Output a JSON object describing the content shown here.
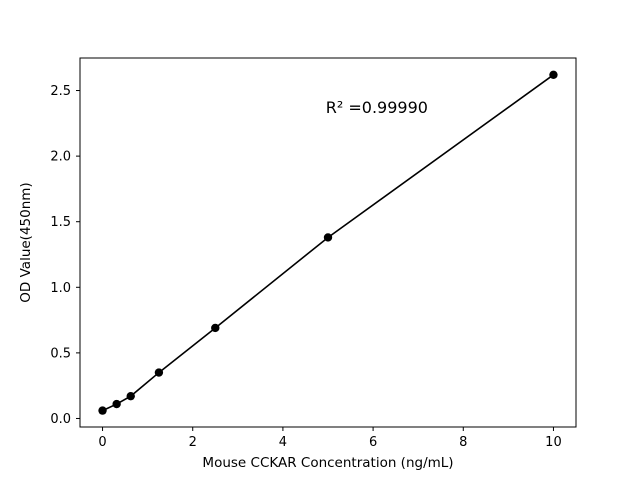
{
  "figure": {
    "background": "#ffffff"
  },
  "chart_data": {
    "type": "scatter",
    "title": "",
    "xlabel": "Mouse CCKAR Concentration (ng/mL)",
    "ylabel": "OD Value(450nm)",
    "x": [
      0,
      0.3125,
      0.625,
      1.25,
      2.5,
      5,
      10
    ],
    "y": [
      0.06,
      0.11,
      0.17,
      0.35,
      0.69,
      1.38,
      2.62
    ],
    "xlim": [
      -0.5,
      10.5
    ],
    "ylim": [
      -0.065,
      2.748
    ],
    "xticks": [
      0,
      2,
      4,
      6,
      8,
      10
    ],
    "xtick_labels": [
      "0",
      "2",
      "4",
      "6",
      "8",
      "10"
    ],
    "yticks": [
      0.0,
      0.5,
      1.0,
      1.5,
      2.0,
      2.5
    ],
    "ytick_labels": [
      "0.0",
      "0.5",
      "1.0",
      "1.5",
      "2.0",
      "2.5"
    ],
    "annotation": {
      "text": "R² =0.99990",
      "x": 4.95,
      "y": 2.33
    },
    "legend": null,
    "grid": false,
    "marker_color": "#000000",
    "line_color": "#000000",
    "axis_color": "#000000"
  }
}
